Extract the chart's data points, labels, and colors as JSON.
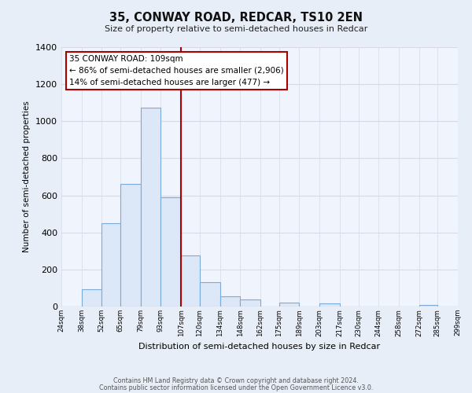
{
  "title": "35, CONWAY ROAD, REDCAR, TS10 2EN",
  "subtitle": "Size of property relative to semi-detached houses in Redcar",
  "xlabel": "Distribution of semi-detached houses by size in Redcar",
  "ylabel": "Number of semi-detached properties",
  "bar_edges": [
    24,
    38,
    52,
    65,
    79,
    93,
    107,
    120,
    134,
    148,
    162,
    175,
    189,
    203,
    217,
    230,
    244,
    258,
    272,
    285,
    299
  ],
  "bar_heights": [
    0,
    95,
    450,
    660,
    1075,
    590,
    275,
    130,
    55,
    40,
    0,
    20,
    0,
    15,
    0,
    0,
    0,
    0,
    10,
    0,
    0
  ],
  "tick_labels": [
    "24sqm",
    "38sqm",
    "52sqm",
    "65sqm",
    "79sqm",
    "93sqm",
    "107sqm",
    "120sqm",
    "134sqm",
    "148sqm",
    "162sqm",
    "175sqm",
    "189sqm",
    "203sqm",
    "217sqm",
    "230sqm",
    "244sqm",
    "258sqm",
    "272sqm",
    "285sqm",
    "299sqm"
  ],
  "bar_color": "#dce8f8",
  "bar_edge_color": "#7aabdb",
  "vline_x": 107,
  "vline_color": "#aa0000",
  "annotation_title": "35 CONWAY ROAD: 109sqm",
  "annotation_line1": "← 86% of semi-detached houses are smaller (2,906)",
  "annotation_line2": "14% of semi-detached houses are larger (477) →",
  "annotation_box_facecolor": "#ffffff",
  "annotation_box_edgecolor": "#aa0000",
  "ylim": [
    0,
    1400
  ],
  "yticks": [
    0,
    200,
    400,
    600,
    800,
    1000,
    1200,
    1400
  ],
  "footer1": "Contains HM Land Registry data © Crown copyright and database right 2024.",
  "footer2": "Contains public sector information licensed under the Open Government Licence v3.0.",
  "fig_facecolor": "#e8eef8",
  "ax_facecolor": "#f0f4fc",
  "grid_color": "#d8d8e8"
}
